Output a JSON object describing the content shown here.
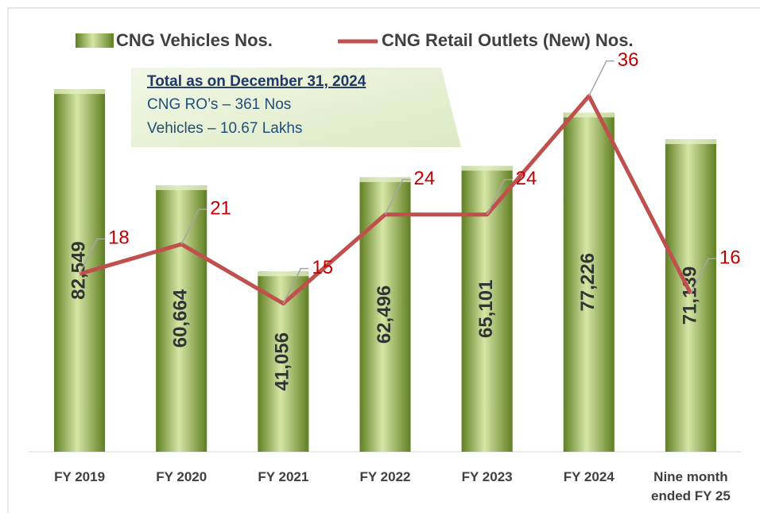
{
  "chart_data": {
    "type": "bar",
    "categories": [
      "FY 2019",
      "FY 2020",
      "FY 2021",
      "FY 2022",
      "FY 2023",
      "FY 2024",
      "Nine month ended FY 25"
    ],
    "series": [
      {
        "name": "CNG Vehicles Nos.",
        "type": "bar",
        "color": "#8aab45",
        "values": [
          82549,
          60664,
          41056,
          62496,
          65101,
          77226,
          71139
        ],
        "value_labels": [
          "82,549",
          "60,664",
          "41,056",
          "62,496",
          "65,101",
          "77,226",
          "71,139"
        ]
      },
      {
        "name": "CNG Retail Outlets (New) Nos.",
        "type": "line",
        "axis": "y2",
        "color": "#c0504d",
        "values": [
          18,
          21,
          15,
          24,
          24,
          36,
          16
        ]
      }
    ],
    "ylim": [
      0,
      90000
    ],
    "y2lim": [
      0,
      40
    ],
    "annotation": {
      "title": "Total as on December 31, 2024",
      "lines": [
        "CNG RO’s  – 361 Nos",
        "Vehicles – 10.67 Lakhs"
      ]
    }
  }
}
